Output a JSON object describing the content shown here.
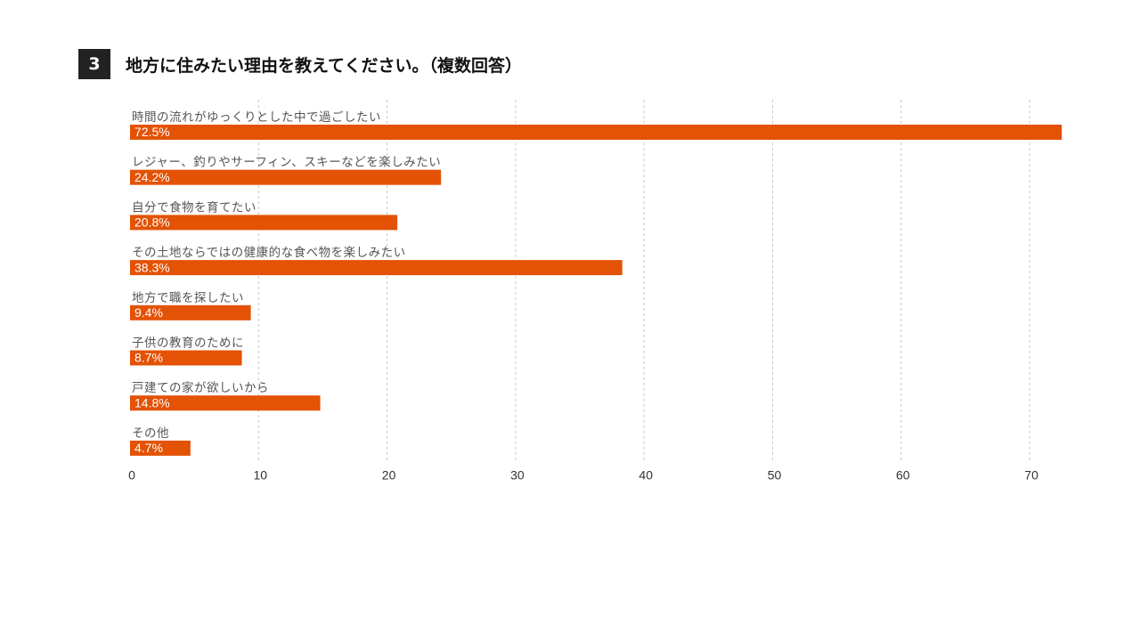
{
  "header": {
    "number": "3",
    "title": "地方に住みたい理由を教えてください。（複数回答）"
  },
  "colors": {
    "bar": "#E35205",
    "badge": "#222222"
  },
  "chart_data": {
    "type": "bar",
    "orientation": "horizontal",
    "title": "地方に住みたい理由を教えてください。（複数回答）",
    "categories": [
      "時間の流れがゆっくりとした中で過ごしたい",
      "レジャー、釣りやサーフィン、スキーなどを楽しみたい",
      "自分で食物を育てたい",
      "その土地ならではの健康的な食べ物を楽しみたい",
      "地方で職を探したい",
      "子供の教育のために",
      "戸建ての家が欲しいから",
      "その他"
    ],
    "values": [
      72.5,
      24.2,
      20.8,
      38.3,
      9.4,
      8.7,
      14.8,
      4.7
    ],
    "value_labels": [
      "72.5%",
      "24.2%",
      "20.8%",
      "38.3%",
      "9.4%",
      "8.7%",
      "14.8%",
      "4.7%"
    ],
    "xticks": [
      "0",
      "10",
      "20",
      "30",
      "40",
      "50",
      "60",
      "70"
    ],
    "xlim": [
      0,
      73
    ],
    "grid": true,
    "xlabel": "",
    "ylabel": ""
  }
}
